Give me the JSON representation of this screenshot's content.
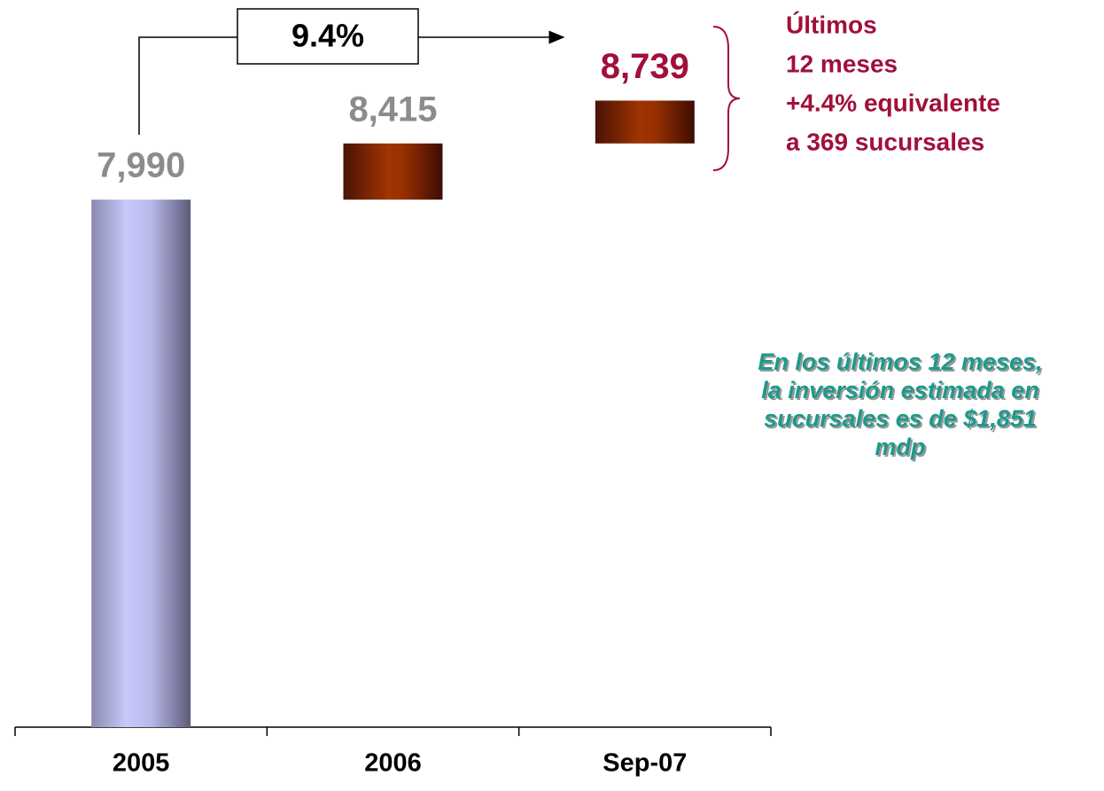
{
  "chart_data": {
    "type": "waterfall",
    "categories": [
      "2005",
      "2006",
      "Sep-07"
    ],
    "values": [
      7990,
      8415,
      8739
    ],
    "value_labels": [
      "7,990",
      "8,415",
      "8,739"
    ],
    "label_colors": [
      "#8c8c8c",
      "#8c8c8c",
      "#a0103a"
    ],
    "colors": [
      "#bdbdf0",
      "#9a3000",
      "#9a3000"
    ],
    "ylim": [
      4000,
      9500
    ],
    "growth_label": "9.4%",
    "brace_text": [
      "Últimos",
      "12 meses",
      "+4.4% equivalente",
      "a 369 sucursales"
    ],
    "note_lines": [
      "En los últimos 12 meses,",
      "la inversión estimada en",
      "sucursales es de $1,851",
      "mdp"
    ]
  }
}
